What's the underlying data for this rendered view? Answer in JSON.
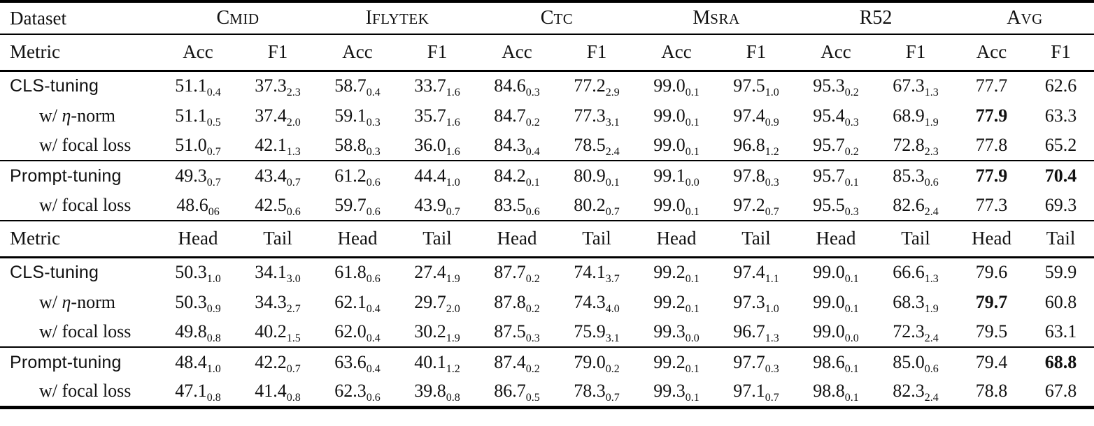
{
  "table": {
    "dataset_header": {
      "label": "Dataset",
      "columns": [
        {
          "cap": "C",
          "sc": "MID"
        },
        {
          "cap": "I",
          "sc": "FLYTEK"
        },
        {
          "cap": "C",
          "sc": "TC"
        },
        {
          "cap": "M",
          "sc": "SRA"
        },
        {
          "cap": "R52",
          "sc": ""
        },
        {
          "cap": "A",
          "sc": "VG"
        }
      ]
    },
    "sections": [
      {
        "metric_label": "Metric",
        "metric_cols": [
          "Acc",
          "F1",
          "Acc",
          "F1",
          "Acc",
          "F1",
          "Acc",
          "F1",
          "Acc",
          "F1",
          "Acc",
          "F1"
        ],
        "blocks": [
          {
            "rows": [
              {
                "label": "CLS-tuning",
                "style": "method",
                "cells": [
                  "51.1_0.4",
                  "37.3_2.3",
                  "58.7_0.4",
                  "33.7_1.6",
                  "84.6_0.3",
                  "77.2_2.9",
                  "99.0_0.1",
                  "97.5_1.0",
                  "95.3_0.2",
                  "67.3_1.3",
                  "77.7",
                  "62.6"
                ]
              },
              {
                "label": "w/ η-norm",
                "style": "variant",
                "cells": [
                  "51.1_0.5",
                  "37.4_2.0",
                  "59.1_0.3",
                  "35.7_1.6",
                  "84.7_0.2",
                  "77.3_3.1",
                  "99.0_0.1",
                  "97.4_0.9",
                  "95.4_0.3",
                  "68.9_1.9",
                  "77.9*",
                  "63.3"
                ]
              },
              {
                "label": "w/ focal loss",
                "style": "variant",
                "cells": [
                  "51.0_0.7",
                  "42.1_1.3",
                  "58.8_0.3",
                  "36.0_1.6",
                  "84.3_0.4",
                  "78.5_2.4",
                  "99.0_0.1",
                  "96.8_1.2",
                  "95.7_0.2",
                  "72.8_2.3",
                  "77.8",
                  "65.2"
                ]
              }
            ]
          },
          {
            "rows": [
              {
                "label": "Prompt-tuning",
                "style": "method",
                "cells": [
                  "49.3_0.7",
                  "43.4_0.7",
                  "61.2_0.6",
                  "44.4_1.0",
                  "84.2_0.1",
                  "80.9_0.1",
                  "99.1_0.0",
                  "97.8_0.3",
                  "95.7_0.1",
                  "85.3_0.6",
                  "77.9*",
                  "70.4*"
                ]
              },
              {
                "label": "w/ focal loss",
                "style": "variant",
                "cells": [
                  "48.6_06",
                  "42.5_0.6",
                  "59.7_0.6",
                  "43.9_0.7",
                  "83.5_0.6",
                  "80.2_0.7",
                  "99.0_0.1",
                  "97.2_0.7",
                  "95.5_0.3",
                  "82.6_2.4",
                  "77.3",
                  "69.3"
                ]
              }
            ]
          }
        ]
      },
      {
        "metric_label": "Metric",
        "metric_cols": [
          "Head",
          "Tail",
          "Head",
          "Tail",
          "Head",
          "Tail",
          "Head",
          "Tail",
          "Head",
          "Tail",
          "Head",
          "Tail"
        ],
        "blocks": [
          {
            "rows": [
              {
                "label": "CLS-tuning",
                "style": "method",
                "cells": [
                  "50.3_1.0",
                  "34.1_3.0",
                  "61.8_0.6",
                  "27.4_1.9",
                  "87.7_0.2",
                  "74.1_3.7",
                  "99.2_0.1",
                  "97.4_1.1",
                  "99.0_0.1",
                  "66.6_1.3",
                  "79.6",
                  "59.9"
                ]
              },
              {
                "label": "w/ η-norm",
                "style": "variant",
                "cells": [
                  "50.3_0.9",
                  "34.3_2.7",
                  "62.1_0.4",
                  "29.7_2.0",
                  "87.8_0.2",
                  "74.3_4.0",
                  "99.2_0.1",
                  "97.3_1.0",
                  "99.0_0.1",
                  "68.3_1.9",
                  "79.7*",
                  "60.8"
                ]
              },
              {
                "label": "w/ focal loss",
                "style": "variant",
                "cells": [
                  "49.8_0.8",
                  "40.2_1.5",
                  "62.0_0.4",
                  "30.2_1.9",
                  "87.5_0.3",
                  "75.9_3.1",
                  "99.3_0.0",
                  "96.7_1.3",
                  "99.0_0.0",
                  "72.3_2.4",
                  "79.5",
                  "63.1"
                ]
              }
            ]
          },
          {
            "rows": [
              {
                "label": "Prompt-tuning",
                "style": "method",
                "cells": [
                  "48.4_1.0",
                  "42.2_0.7",
                  "63.6_0.4",
                  "40.1_1.2",
                  "87.4_0.2",
                  "79.0_0.2",
                  "99.2_0.1",
                  "97.7_0.3",
                  "98.6_0.1",
                  "85.0_0.6",
                  "79.4",
                  "68.8*"
                ]
              },
              {
                "label": "w/ focal loss",
                "style": "variant",
                "cells": [
                  "47.1_0.8",
                  "41.4_0.8",
                  "62.3_0.6",
                  "39.8_0.8",
                  "86.7_0.5",
                  "78.3_0.7",
                  "99.3_0.1",
                  "97.1_0.7",
                  "98.8_0.1",
                  "82.3_2.4",
                  "78.8",
                  "67.8"
                ]
              }
            ]
          }
        ]
      }
    ]
  }
}
